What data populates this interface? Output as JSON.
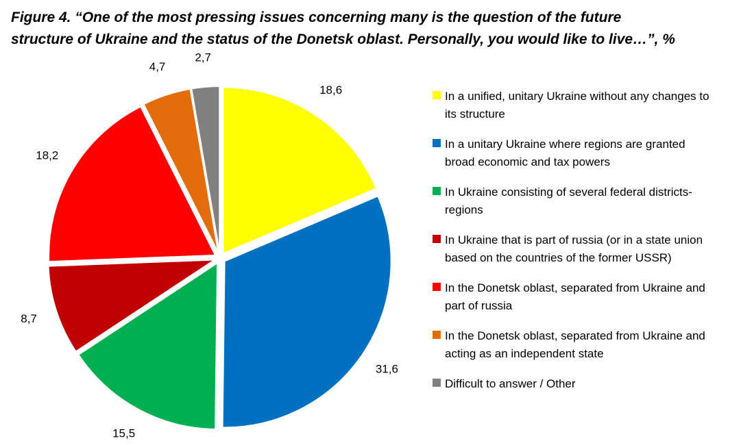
{
  "title": {
    "line1": "Figure 4. “One of the most pressing issues concerning many is the question of the future",
    "line2": "structure of Ukraine and the status of the Donetsk oblast. Personally, you would like to live…”, %"
  },
  "chart_data": {
    "type": "pie",
    "title": "Figure 4. “One of the most pressing issues concerning many is the question of the future structure of Ukraine and the status of the Donetsk oblast. Personally, you would like to live…”, %",
    "legend_position": "right",
    "slices": [
      {
        "label": "In a unified, unitary Ukraine without any changes to its structure",
        "value": 18.6,
        "value_label": "18,6",
        "color": "#FFFF00"
      },
      {
        "label": "In a unitary Ukraine where regions are granted broad economic and tax powers",
        "value": 31.6,
        "value_label": "31,6",
        "color": "#0070C0"
      },
      {
        "label": "In Ukraine consisting of several federal districts-regions",
        "value": 15.5,
        "value_label": "15,5",
        "color": "#00B050"
      },
      {
        "label": "In Ukraine that is part of russia (or in a state union based on the countries of the former USSR)",
        "value": 8.7,
        "value_label": "8,7",
        "color": "#C00000"
      },
      {
        "label": "In the Donetsk oblast, separated from Ukraine and part of russia",
        "value": 18.2,
        "value_label": "18,2",
        "color": "#FF0000"
      },
      {
        "label": "In the Donetsk oblast, separated from Ukraine and acting as an independent state",
        "value": 4.7,
        "value_label": "4,7",
        "color": "#E46C0A"
      },
      {
        "label": "Difficult to answer / Other",
        "value": 2.7,
        "value_label": "2,7",
        "color": "#808080"
      }
    ]
  }
}
